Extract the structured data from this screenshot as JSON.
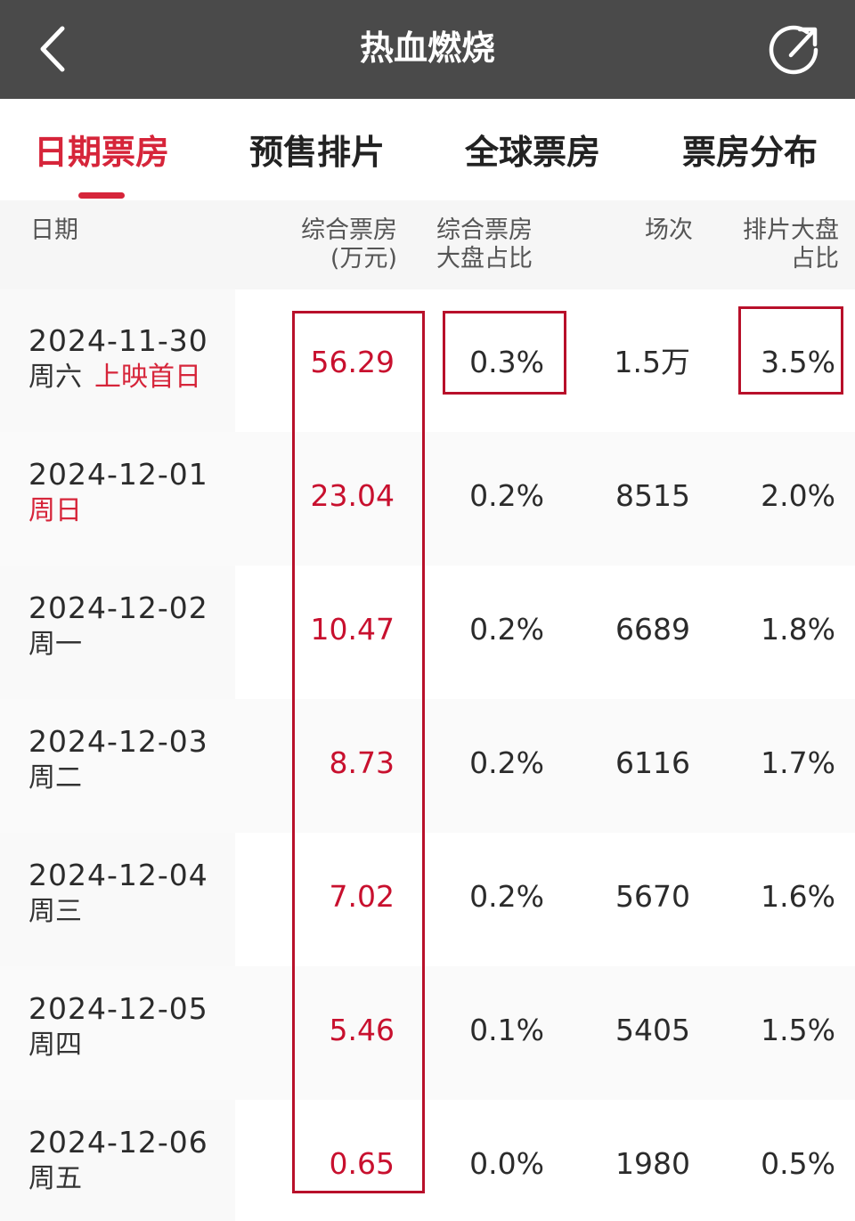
{
  "header": {
    "title": "热血燃烧"
  },
  "tabs": [
    {
      "label": "日期票房",
      "active": true
    },
    {
      "label": "预售排片",
      "active": false
    },
    {
      "label": "全球票房",
      "active": false
    },
    {
      "label": "票房分布",
      "active": false
    }
  ],
  "table": {
    "headers": {
      "date": "日期",
      "box_office_l1": "综合票房",
      "box_office_l2": "(万元)",
      "share_l1": "综合票房",
      "share_l2": "大盘占比",
      "screenings": "场次",
      "sched_l1": "排片大盘",
      "sched_l2": "占比"
    },
    "rows": [
      {
        "date": "2024-11-30",
        "weekday": "周六",
        "tag": "上映首日",
        "box_office": "56.29",
        "share": "0.3%",
        "screenings": "1.5万",
        "schedule": "3.5%"
      },
      {
        "date": "2024-12-01",
        "weekday": "周日",
        "tag": "",
        "box_office": "23.04",
        "share": "0.2%",
        "screenings": "8515",
        "schedule": "2.0%"
      },
      {
        "date": "2024-12-02",
        "weekday": "周一",
        "tag": "",
        "box_office": "10.47",
        "share": "0.2%",
        "screenings": "6689",
        "schedule": "1.8%"
      },
      {
        "date": "2024-12-03",
        "weekday": "周二",
        "tag": "",
        "box_office": "8.73",
        "share": "0.2%",
        "screenings": "6116",
        "schedule": "1.7%"
      },
      {
        "date": "2024-12-04",
        "weekday": "周三",
        "tag": "",
        "box_office": "7.02",
        "share": "0.2%",
        "screenings": "5670",
        "schedule": "1.6%"
      },
      {
        "date": "2024-12-05",
        "weekday": "周四",
        "tag": "",
        "box_office": "5.46",
        "share": "0.1%",
        "screenings": "5405",
        "schedule": "1.5%"
      },
      {
        "date": "2024-12-06",
        "weekday": "周五",
        "tag": "",
        "box_office": "0.65",
        "share": "0.0%",
        "screenings": "1980",
        "schedule": "0.5%"
      }
    ]
  },
  "colors": {
    "accent": "#d6253a",
    "topbar": "#4a4a4a",
    "highlight_box": "#b8102a"
  },
  "icons": {
    "back": "chevron-left-icon",
    "share": "share-icon"
  }
}
